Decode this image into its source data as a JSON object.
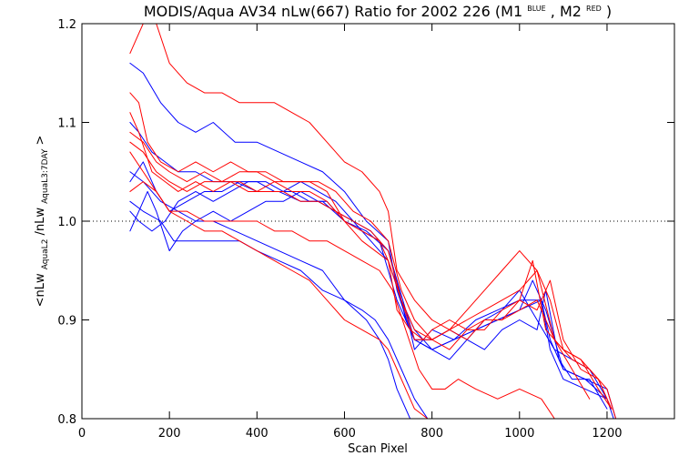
{
  "chart_data": {
    "type": "line",
    "title": {
      "main": "MODIS/Aqua AV34 nLw(667) Ratio for 2002 226 (M1",
      "sup1": "BLUE",
      "middle": ", M2",
      "sup2": "RED",
      "end": ")"
    },
    "xlabel": "Scan Pixel",
    "ylabel": {
      "prefix": "<nLw",
      "sub1": "AquaL2",
      "middle": "/nLw",
      "sub2": "AquaL3:7DAY",
      "suffix": ">"
    },
    "xlim": [
      0,
      1354
    ],
    "ylim": [
      0.8,
      1.2
    ],
    "x_ticks": [
      0,
      200,
      400,
      600,
      800,
      1000,
      1200
    ],
    "y_ticks": [
      0.8,
      0.9,
      1.0,
      1.1,
      1.2
    ],
    "x_tick_labels": [
      "0",
      "200",
      "400",
      "600",
      "800",
      "1000",
      "1200"
    ],
    "y_tick_labels": [
      "0.8",
      "0.9",
      "1.0",
      "1.1",
      "1.2"
    ],
    "reference_y": 1.0,
    "colors": {
      "blue": "#0000ff",
      "red": "#ff0000",
      "axis": "#000000"
    },
    "series": [
      {
        "color": "blue",
        "x": [
          110,
          140,
          180,
          220,
          260,
          300,
          350,
          400,
          450,
          500,
          550,
          600,
          650,
          700,
          720,
          750,
          760,
          800,
          850,
          900,
          950,
          1000,
          1050,
          1070,
          1100,
          1150,
          1200,
          1220
        ],
        "y": [
          1.16,
          1.15,
          1.12,
          1.1,
          1.09,
          1.1,
          1.08,
          1.08,
          1.07,
          1.06,
          1.05,
          1.03,
          1.0,
          0.98,
          0.93,
          0.89,
          0.87,
          0.89,
          0.88,
          0.9,
          0.91,
          0.92,
          0.92,
          0.88,
          0.85,
          0.84,
          0.83,
          0.8
        ]
      },
      {
        "color": "blue",
        "x": [
          110,
          130,
          160,
          190,
          220,
          260,
          300,
          350,
          400,
          450,
          500,
          550,
          600,
          650,
          700,
          720,
          740,
          760,
          800,
          850,
          900,
          950,
          1000,
          1050,
          1070,
          1100,
          1150,
          1200,
          1215
        ],
        "y": [
          1.1,
          1.09,
          1.07,
          1.06,
          1.05,
          1.05,
          1.04,
          1.04,
          1.03,
          1.03,
          1.02,
          1.02,
          1.0,
          0.99,
          0.97,
          0.94,
          0.9,
          0.88,
          0.87,
          0.88,
          0.89,
          0.9,
          0.91,
          0.92,
          0.87,
          0.84,
          0.83,
          0.82,
          0.8
        ]
      },
      {
        "color": "blue",
        "x": [
          110,
          140,
          180,
          220,
          260,
          300,
          350,
          400,
          450,
          500,
          550,
          600,
          640,
          670,
          700,
          730,
          760,
          790,
          830,
          870,
          900
        ],
        "y": [
          1.05,
          1.04,
          1.02,
          1.01,
          1.0,
          1.0,
          0.99,
          0.98,
          0.97,
          0.96,
          0.95,
          0.92,
          0.91,
          0.9,
          0.88,
          0.85,
          0.82,
          0.8,
          0.78,
          0.77,
          0.76
        ]
      },
      {
        "color": "blue",
        "x": [
          110,
          140,
          180,
          210,
          240,
          280,
          320,
          360,
          400,
          450,
          500,
          550,
          600,
          650,
          680,
          700,
          720,
          750,
          780
        ],
        "y": [
          1.02,
          1.01,
          1.0,
          0.98,
          0.98,
          0.98,
          0.98,
          0.98,
          0.97,
          0.96,
          0.95,
          0.93,
          0.92,
          0.9,
          0.88,
          0.86,
          0.83,
          0.8,
          0.77
        ]
      },
      {
        "color": "blue",
        "x": [
          110,
          130,
          150,
          170,
          200,
          230,
          260,
          300,
          340,
          380,
          420,
          460,
          500,
          540,
          580,
          620,
          660,
          700,
          720,
          740,
          760,
          800,
          850,
          900,
          950,
          1000,
          1030,
          1060,
          1100,
          1150,
          1200
        ],
        "y": [
          0.99,
          1.01,
          1.03,
          1.01,
          0.97,
          0.99,
          1.0,
          1.01,
          1.0,
          1.01,
          1.02,
          1.02,
          1.03,
          1.02,
          1.01,
          1.0,
          0.99,
          0.97,
          0.94,
          0.91,
          0.88,
          0.87,
          0.88,
          0.89,
          0.9,
          0.91,
          0.94,
          0.91,
          0.85,
          0.84,
          0.82
        ]
      },
      {
        "color": "blue",
        "x": [
          110,
          140,
          170,
          200,
          240,
          280,
          320,
          360,
          400,
          440,
          480,
          520,
          560,
          600,
          640,
          680,
          700,
          720,
          740,
          760,
          800,
          840,
          880,
          920,
          960,
          1000,
          1040,
          1080,
          1120,
          1160,
          1200
        ],
        "y": [
          1.04,
          1.06,
          1.03,
          1.01,
          1.02,
          1.03,
          1.03,
          1.04,
          1.04,
          1.03,
          1.03,
          1.02,
          1.02,
          1.0,
          0.99,
          0.98,
          0.95,
          0.92,
          0.9,
          0.88,
          0.88,
          0.89,
          0.88,
          0.9,
          0.91,
          0.93,
          0.9,
          0.87,
          0.86,
          0.85,
          0.82
        ]
      },
      {
        "color": "blue",
        "x": [
          110,
          130,
          160,
          190,
          220,
          260,
          300,
          340,
          380,
          420,
          460,
          500,
          540,
          580,
          620,
          660,
          700,
          730,
          760,
          800,
          840,
          880,
          920,
          960,
          1000,
          1040,
          1060,
          1090,
          1120,
          1160,
          1200
        ],
        "y": [
          1.01,
          1.0,
          0.99,
          1.0,
          1.02,
          1.03,
          1.02,
          1.03,
          1.04,
          1.04,
          1.03,
          1.04,
          1.03,
          1.02,
          1.0,
          0.98,
          0.96,
          0.92,
          0.89,
          0.87,
          0.86,
          0.88,
          0.87,
          0.89,
          0.9,
          0.89,
          0.93,
          0.86,
          0.84,
          0.84,
          0.81
        ]
      },
      {
        "color": "red",
        "x": [
          110,
          130,
          150,
          170,
          200,
          240,
          280,
          320,
          360,
          400,
          440,
          480,
          520,
          560,
          600,
          640,
          680,
          700,
          720,
          760,
          800,
          840,
          880,
          920,
          960,
          1000,
          1040,
          1080,
          1120,
          1160
        ],
        "y": [
          1.17,
          1.19,
          1.21,
          1.2,
          1.16,
          1.14,
          1.13,
          1.13,
          1.12,
          1.12,
          1.12,
          1.11,
          1.1,
          1.08,
          1.06,
          1.05,
          1.03,
          1.01,
          0.95,
          0.92,
          0.9,
          0.89,
          0.91,
          0.93,
          0.95,
          0.97,
          0.95,
          0.88,
          0.85,
          0.82
        ]
      },
      {
        "color": "red",
        "x": [
          110,
          130,
          150,
          180,
          220,
          260,
          300,
          340,
          380,
          420,
          460,
          500,
          540,
          580,
          620,
          660,
          700,
          730,
          760,
          800,
          840,
          880,
          920,
          960,
          1000,
          1040,
          1070,
          1100,
          1140,
          1180,
          1210
        ],
        "y": [
          1.13,
          1.12,
          1.08,
          1.06,
          1.05,
          1.06,
          1.05,
          1.06,
          1.05,
          1.05,
          1.04,
          1.04,
          1.04,
          1.03,
          1.01,
          1.0,
          0.98,
          0.93,
          0.9,
          0.88,
          0.89,
          0.9,
          0.91,
          0.92,
          0.93,
          0.95,
          0.92,
          0.87,
          0.86,
          0.84,
          0.81
        ]
      },
      {
        "color": "red",
        "x": [
          110,
          130,
          160,
          190,
          220,
          260,
          300,
          340,
          380,
          420,
          460,
          500,
          540,
          580,
          620,
          660,
          700,
          730,
          760,
          800,
          840,
          880,
          920,
          960,
          1000,
          1040,
          1070,
          1100,
          1140,
          1180,
          1210
        ],
        "y": [
          1.11,
          1.09,
          1.05,
          1.04,
          1.03,
          1.04,
          1.03,
          1.04,
          1.03,
          1.03,
          1.03,
          1.02,
          1.02,
          1.01,
          1.0,
          0.99,
          0.97,
          0.92,
          0.88,
          0.88,
          0.87,
          0.89,
          0.89,
          0.91,
          0.92,
          0.91,
          0.94,
          0.88,
          0.85,
          0.84,
          0.81
        ]
      },
      {
        "color": "red",
        "x": [
          110,
          140,
          170,
          200,
          240,
          280,
          320,
          360,
          400,
          440,
          480,
          520,
          560,
          600,
          640,
          680,
          700,
          720,
          740,
          760,
          790,
          820,
          860,
          900
        ],
        "y": [
          1.07,
          1.05,
          1.03,
          1.01,
          1.0,
          0.99,
          0.99,
          0.98,
          0.97,
          0.96,
          0.95,
          0.94,
          0.92,
          0.9,
          0.89,
          0.88,
          0.87,
          0.85,
          0.83,
          0.81,
          0.8,
          0.79,
          0.78,
          0.77
        ]
      },
      {
        "color": "red",
        "x": [
          110,
          140,
          170,
          200,
          240,
          280,
          320,
          360,
          400,
          440,
          480,
          520,
          560,
          600,
          640,
          670,
          700,
          730,
          760,
          800,
          840,
          880,
          920,
          960,
          1000,
          1040,
          1080,
          1120,
          1160,
          1200,
          1220
        ],
        "y": [
          1.09,
          1.08,
          1.06,
          1.05,
          1.04,
          1.05,
          1.04,
          1.05,
          1.05,
          1.04,
          1.04,
          1.04,
          1.03,
          1.0,
          0.98,
          0.97,
          0.96,
          0.92,
          0.89,
          0.88,
          0.89,
          0.88,
          0.9,
          0.9,
          0.91,
          0.92,
          0.88,
          0.86,
          0.85,
          0.83,
          0.8
        ]
      },
      {
        "color": "red",
        "x": [
          110,
          140,
          170,
          200,
          240,
          280,
          320,
          360,
          400,
          440,
          480,
          520,
          560,
          600,
          640,
          680,
          710,
          740,
          770,
          800,
          830,
          860,
          900,
          950,
          1000,
          1050,
          1080
        ],
        "y": [
          1.03,
          1.04,
          1.03,
          1.01,
          1.01,
          1.0,
          1.0,
          1.0,
          1.0,
          0.99,
          0.99,
          0.98,
          0.98,
          0.97,
          0.96,
          0.95,
          0.93,
          0.89,
          0.85,
          0.83,
          0.83,
          0.84,
          0.83,
          0.82,
          0.83,
          0.82,
          0.8
        ]
      },
      {
        "color": "red",
        "x": [
          110,
          140,
          170,
          200,
          240,
          280,
          320,
          360,
          400,
          440,
          480,
          520,
          560,
          600,
          640,
          680,
          700,
          720,
          750,
          780,
          800,
          840,
          880,
          920,
          960,
          1000,
          1030,
          1060,
          1100,
          1140,
          1180,
          1210
        ],
        "y": [
          1.08,
          1.07,
          1.05,
          1.04,
          1.03,
          1.04,
          1.04,
          1.04,
          1.03,
          1.04,
          1.03,
          1.03,
          1.02,
          1.0,
          0.99,
          0.98,
          0.96,
          0.91,
          0.89,
          0.88,
          0.89,
          0.9,
          0.89,
          0.9,
          0.9,
          0.92,
          0.96,
          0.89,
          0.87,
          0.86,
          0.83,
          0.81
        ]
      }
    ]
  }
}
